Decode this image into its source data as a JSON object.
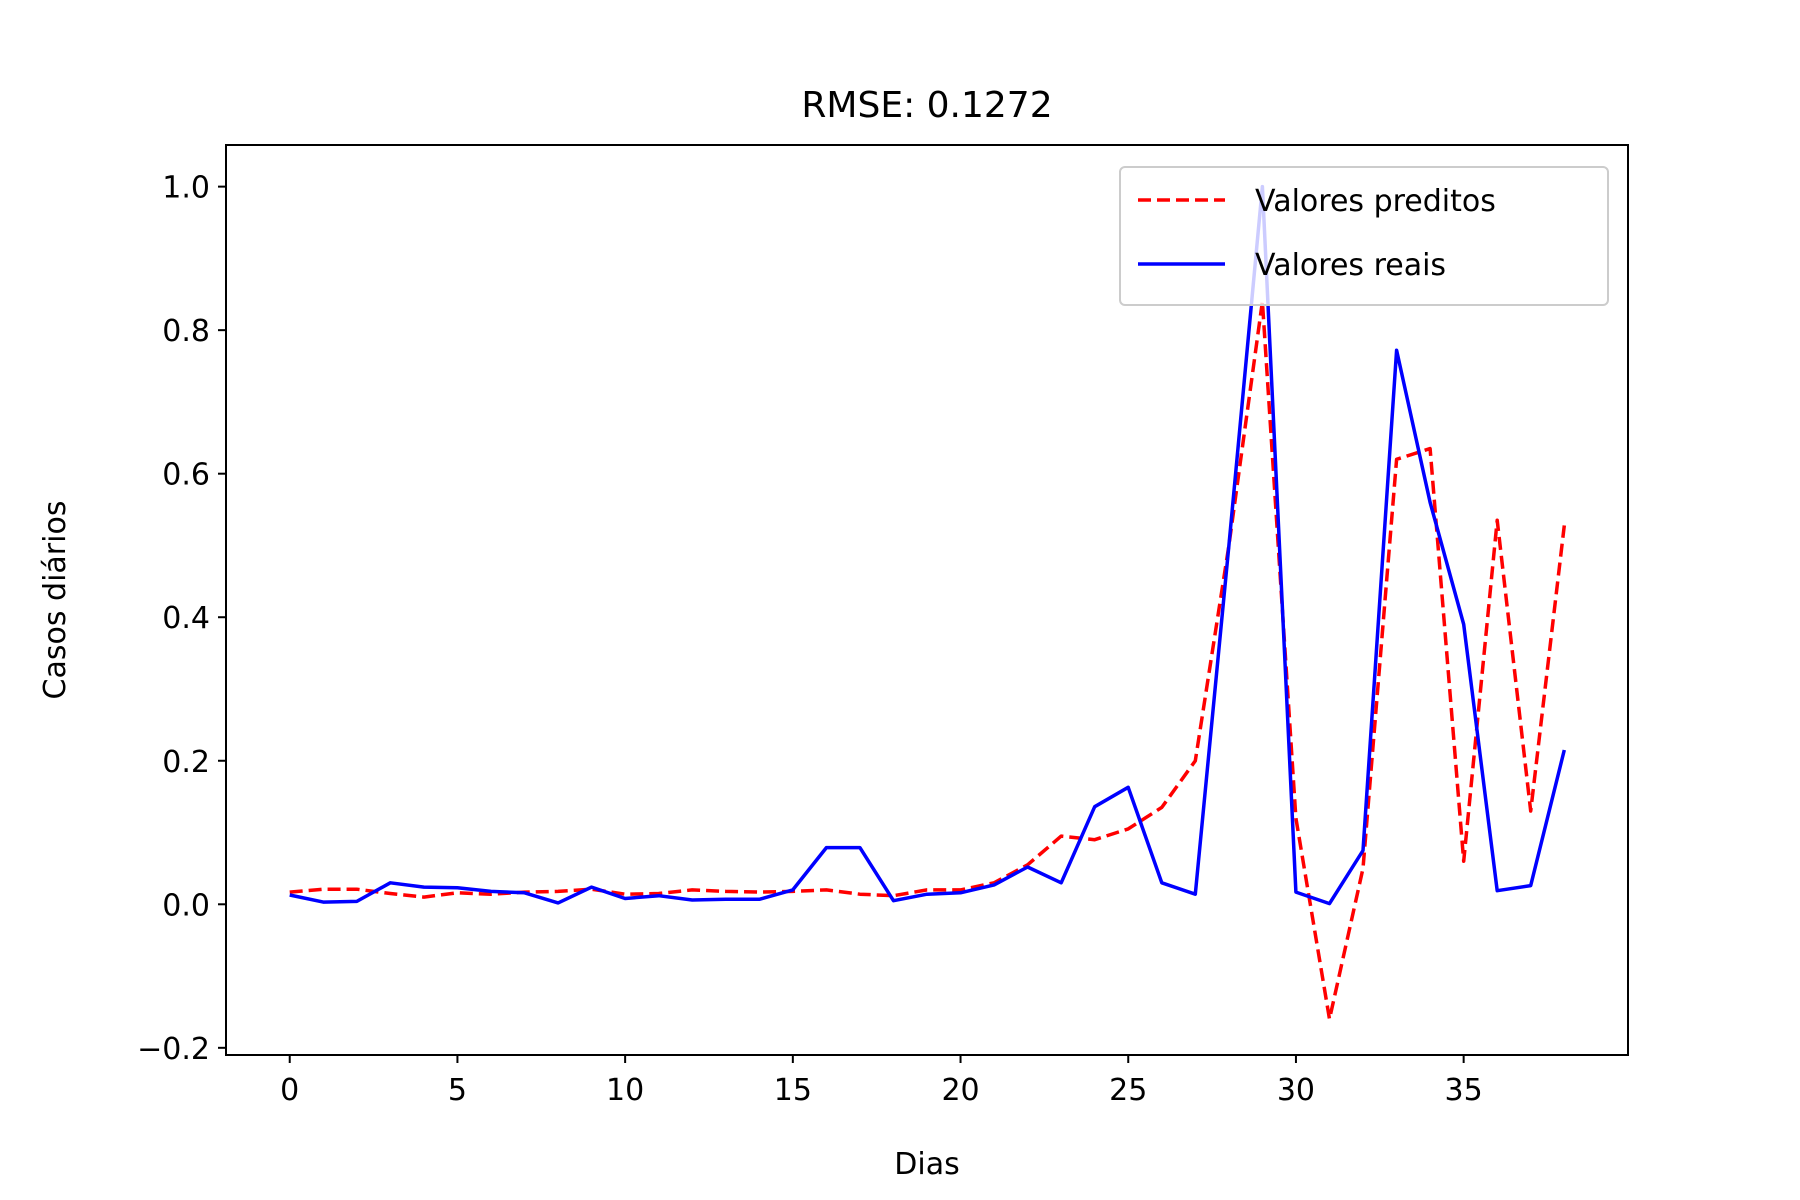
{
  "chart_data": {
    "type": "line",
    "title": "RMSE: 0.1272",
    "xlabel": "Dias",
    "ylabel": "Casos diários",
    "xlim": [
      -1.9,
      39.9
    ],
    "ylim": [
      -0.21,
      1.058
    ],
    "xticks": [
      0,
      5,
      10,
      15,
      20,
      25,
      30,
      35
    ],
    "yticks": [
      -0.2,
      0.0,
      0.2,
      0.4,
      0.6,
      0.8,
      1.0
    ],
    "ytick_labels": [
      "−0.2",
      "0.0",
      "0.2",
      "0.4",
      "0.6",
      "0.8",
      "1.0"
    ],
    "grid": false,
    "legend": "upper right",
    "x": [
      0,
      1,
      2,
      3,
      4,
      5,
      6,
      7,
      8,
      9,
      10,
      11,
      12,
      13,
      14,
      15,
      16,
      17,
      18,
      19,
      20,
      21,
      22,
      23,
      24,
      25,
      26,
      27,
      28,
      29,
      30,
      31,
      32,
      33,
      34,
      35,
      36,
      37,
      38
    ],
    "series": [
      {
        "name": "Valores preditos",
        "color": "#ff0000",
        "style": "dashed",
        "values": [
          0.017,
          0.021,
          0.021,
          0.015,
          0.01,
          0.016,
          0.014,
          0.017,
          0.018,
          0.021,
          0.014,
          0.015,
          0.02,
          0.018,
          0.017,
          0.018,
          0.02,
          0.014,
          0.012,
          0.02,
          0.02,
          0.03,
          0.055,
          0.095,
          0.09,
          0.105,
          0.135,
          0.2,
          0.5,
          0.84,
          0.12,
          -0.16,
          0.05,
          0.62,
          0.635,
          0.06,
          0.535,
          0.13,
          0.528
        ]
      },
      {
        "name": "Valores reais",
        "color": "#0000ff",
        "style": "solid",
        "values": [
          0.013,
          0.003,
          0.004,
          0.03,
          0.024,
          0.023,
          0.018,
          0.016,
          0.002,
          0.024,
          0.008,
          0.012,
          0.006,
          0.007,
          0.007,
          0.02,
          0.079,
          0.079,
          0.005,
          0.014,
          0.016,
          0.027,
          0.052,
          0.03,
          0.136,
          0.163,
          0.03,
          0.014,
          0.5,
          1.0,
          0.017,
          0.001,
          0.075,
          0.772,
          0.56,
          0.39,
          0.019,
          0.026,
          0.215
        ]
      }
    ]
  }
}
